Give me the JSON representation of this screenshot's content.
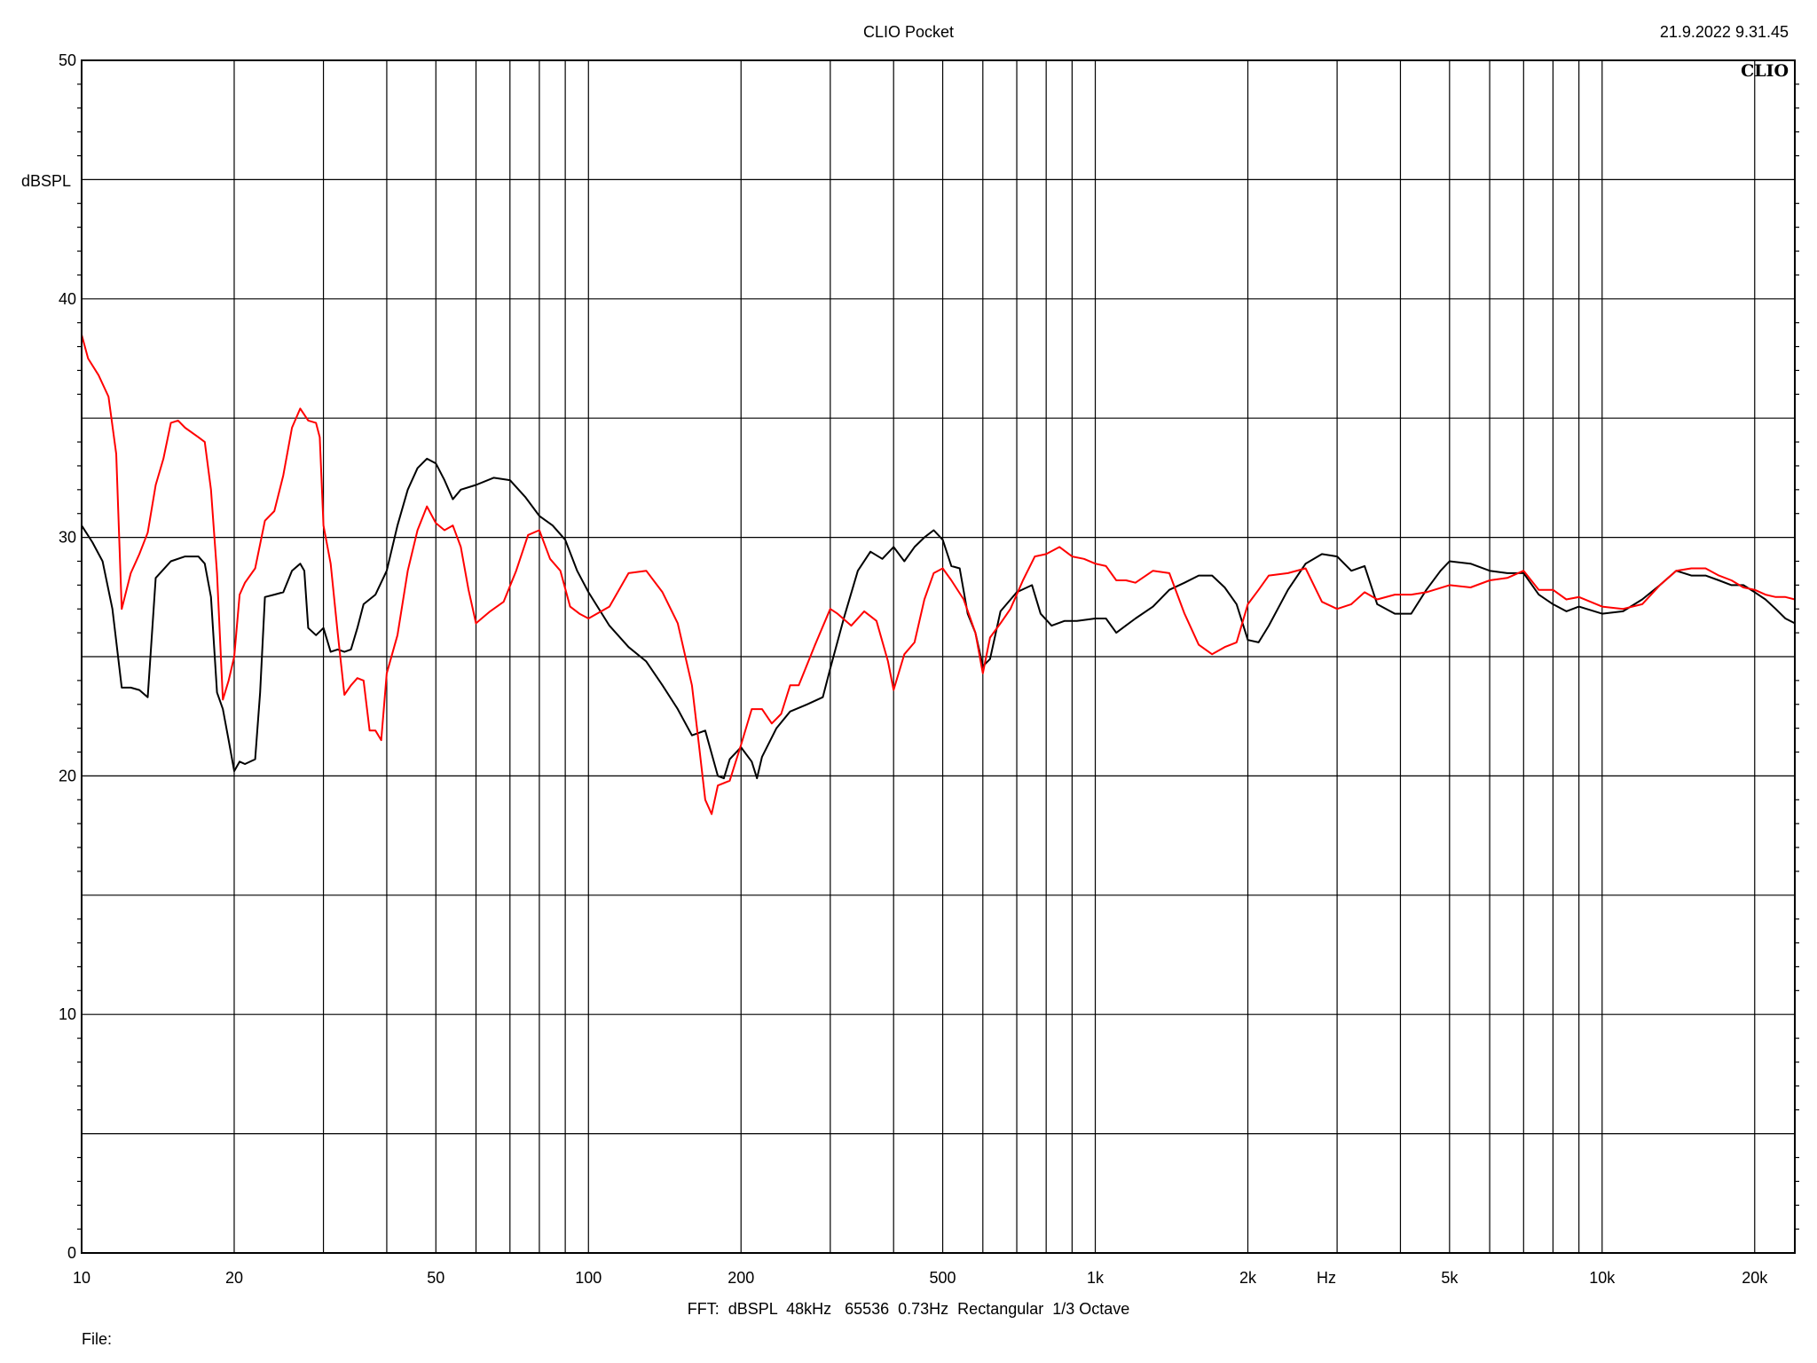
{
  "header": {
    "app_title": "CLIO Pocket",
    "timestamp": "21.9.2022 9.31.45",
    "brand_logo": "CLIO"
  },
  "footer": {
    "settings_line": "FFT:  dBSPL  48kHz   65536  0.73Hz  Rectangular  1/3 Octave",
    "file_label": "File:"
  },
  "chart_data": {
    "type": "line",
    "ylabel": "dBSPL",
    "xlabel_unit": "Hz",
    "x_scale": "log",
    "xlim": [
      10,
      24000
    ],
    "ylim": [
      0,
      50
    ],
    "grid": true,
    "x_tick_labels": [
      {
        "value": 10,
        "label": "10"
      },
      {
        "value": 20,
        "label": "20"
      },
      {
        "value": 50,
        "label": "50"
      },
      {
        "value": 100,
        "label": "100"
      },
      {
        "value": 200,
        "label": "200"
      },
      {
        "value": 500,
        "label": "500"
      },
      {
        "value": 1000,
        "label": "1k"
      },
      {
        "value": 2000,
        "label": "2k"
      },
      {
        "value": 5000,
        "label": "5k"
      },
      {
        "value": 10000,
        "label": "10k"
      },
      {
        "value": 20000,
        "label": "20k"
      }
    ],
    "y_tick_labels": [
      {
        "value": 0,
        "label": "0"
      },
      {
        "value": 10,
        "label": "10"
      },
      {
        "value": 20,
        "label": "20"
      },
      {
        "value": 30,
        "label": "30"
      },
      {
        "value": 40,
        "label": "40"
      },
      {
        "value": 50,
        "label": "50"
      }
    ],
    "series": [
      {
        "color": "#000000",
        "points": [
          [
            10,
            30.5
          ],
          [
            10.5,
            29.8
          ],
          [
            11,
            29.0
          ],
          [
            11.5,
            27.0
          ],
          [
            12,
            23.7
          ],
          [
            12.5,
            23.7
          ],
          [
            13,
            23.6
          ],
          [
            13.5,
            23.3
          ],
          [
            14,
            28.3
          ],
          [
            15,
            29.0
          ],
          [
            16,
            29.2
          ],
          [
            17,
            29.2
          ],
          [
            17.5,
            28.9
          ],
          [
            18,
            27.5
          ],
          [
            18.5,
            23.5
          ],
          [
            19,
            22.8
          ],
          [
            19.5,
            21.5
          ],
          [
            20,
            20.2
          ],
          [
            20.5,
            20.6
          ],
          [
            21,
            20.5
          ],
          [
            22,
            20.7
          ],
          [
            22.5,
            23.5
          ],
          [
            23,
            27.5
          ],
          [
            24,
            27.6
          ],
          [
            25,
            27.7
          ],
          [
            26,
            28.6
          ],
          [
            27,
            28.9
          ],
          [
            27.5,
            28.6
          ],
          [
            28,
            26.2
          ],
          [
            29,
            25.9
          ],
          [
            30,
            26.2
          ],
          [
            31,
            25.2
          ],
          [
            32,
            25.3
          ],
          [
            33,
            25.2
          ],
          [
            34,
            25.3
          ],
          [
            35,
            26.2
          ],
          [
            36,
            27.2
          ],
          [
            38,
            27.6
          ],
          [
            40,
            28.6
          ],
          [
            42,
            30.5
          ],
          [
            44,
            32.0
          ],
          [
            46,
            32.9
          ],
          [
            48,
            33.3
          ],
          [
            50,
            33.1
          ],
          [
            52,
            32.4
          ],
          [
            54,
            31.6
          ],
          [
            56,
            32.0
          ],
          [
            60,
            32.2
          ],
          [
            65,
            32.5
          ],
          [
            70,
            32.4
          ],
          [
            75,
            31.7
          ],
          [
            80,
            30.9
          ],
          [
            85,
            30.5
          ],
          [
            90,
            29.9
          ],
          [
            95,
            28.6
          ],
          [
            100,
            27.7
          ],
          [
            110,
            26.3
          ],
          [
            120,
            25.4
          ],
          [
            130,
            24.8
          ],
          [
            140,
            23.8
          ],
          [
            150,
            22.8
          ],
          [
            160,
            21.7
          ],
          [
            170,
            21.9
          ],
          [
            180,
            20.0
          ],
          [
            185,
            19.9
          ],
          [
            190,
            20.7
          ],
          [
            200,
            21.2
          ],
          [
            210,
            20.6
          ],
          [
            215,
            19.9
          ],
          [
            220,
            20.8
          ],
          [
            235,
            22.0
          ],
          [
            250,
            22.7
          ],
          [
            270,
            23.0
          ],
          [
            290,
            23.3
          ],
          [
            300,
            24.5
          ],
          [
            320,
            26.7
          ],
          [
            340,
            28.6
          ],
          [
            360,
            29.4
          ],
          [
            380,
            29.1
          ],
          [
            400,
            29.6
          ],
          [
            420,
            29.0
          ],
          [
            440,
            29.6
          ],
          [
            460,
            30.0
          ],
          [
            480,
            30.3
          ],
          [
            500,
            29.9
          ],
          [
            520,
            28.8
          ],
          [
            540,
            28.7
          ],
          [
            560,
            26.8
          ],
          [
            580,
            26.0
          ],
          [
            600,
            24.6
          ],
          [
            620,
            24.9
          ],
          [
            650,
            26.9
          ],
          [
            700,
            27.7
          ],
          [
            750,
            28.0
          ],
          [
            780,
            26.8
          ],
          [
            820,
            26.3
          ],
          [
            870,
            26.5
          ],
          [
            920,
            26.5
          ],
          [
            1000,
            26.6
          ],
          [
            1050,
            26.6
          ],
          [
            1100,
            26.0
          ],
          [
            1200,
            26.6
          ],
          [
            1300,
            27.1
          ],
          [
            1400,
            27.8
          ],
          [
            1500,
            28.1
          ],
          [
            1600,
            28.4
          ],
          [
            1700,
            28.4
          ],
          [
            1800,
            27.9
          ],
          [
            1900,
            27.2
          ],
          [
            2000,
            25.7
          ],
          [
            2100,
            25.6
          ],
          [
            2200,
            26.3
          ],
          [
            2400,
            27.8
          ],
          [
            2600,
            28.9
          ],
          [
            2800,
            29.3
          ],
          [
            3000,
            29.2
          ],
          [
            3200,
            28.6
          ],
          [
            3400,
            28.8
          ],
          [
            3600,
            27.2
          ],
          [
            3900,
            26.8
          ],
          [
            4200,
            26.8
          ],
          [
            4500,
            27.8
          ],
          [
            4800,
            28.6
          ],
          [
            5000,
            29.0
          ],
          [
            5500,
            28.9
          ],
          [
            6000,
            28.6
          ],
          [
            6500,
            28.5
          ],
          [
            7000,
            28.5
          ],
          [
            7500,
            27.6
          ],
          [
            8000,
            27.2
          ],
          [
            8500,
            26.9
          ],
          [
            9000,
            27.1
          ],
          [
            10000,
            26.8
          ],
          [
            11000,
            26.9
          ],
          [
            12000,
            27.4
          ],
          [
            13000,
            28.0
          ],
          [
            14000,
            28.6
          ],
          [
            15000,
            28.4
          ],
          [
            16000,
            28.4
          ],
          [
            17000,
            28.2
          ],
          [
            18000,
            28.0
          ],
          [
            19000,
            28.0
          ],
          [
            20000,
            27.7
          ],
          [
            21000,
            27.4
          ],
          [
            22000,
            27.0
          ],
          [
            23000,
            26.6
          ],
          [
            24000,
            26.4
          ]
        ]
      },
      {
        "color": "#ff0000",
        "points": [
          [
            10,
            38.5
          ],
          [
            10.3,
            37.5
          ],
          [
            10.8,
            36.8
          ],
          [
            11.3,
            35.9
          ],
          [
            11.7,
            33.5
          ],
          [
            12,
            27.0
          ],
          [
            12.5,
            28.5
          ],
          [
            13,
            29.3
          ],
          [
            13.5,
            30.2
          ],
          [
            14,
            32.2
          ],
          [
            14.5,
            33.3
          ],
          [
            15,
            34.8
          ],
          [
            15.5,
            34.9
          ],
          [
            16,
            34.6
          ],
          [
            17,
            34.2
          ],
          [
            17.5,
            34.0
          ],
          [
            18,
            32.0
          ],
          [
            18.5,
            28.5
          ],
          [
            19,
            23.2
          ],
          [
            19.5,
            24.0
          ],
          [
            20,
            25.0
          ],
          [
            20.5,
            27.6
          ],
          [
            21,
            28.1
          ],
          [
            22,
            28.7
          ],
          [
            23,
            30.7
          ],
          [
            24,
            31.1
          ],
          [
            25,
            32.6
          ],
          [
            26,
            34.6
          ],
          [
            27,
            35.4
          ],
          [
            28,
            34.9
          ],
          [
            29,
            34.8
          ],
          [
            29.5,
            34.2
          ],
          [
            30,
            30.5
          ],
          [
            31,
            28.9
          ],
          [
            32,
            26.0
          ],
          [
            33,
            23.4
          ],
          [
            34,
            23.8
          ],
          [
            35,
            24.1
          ],
          [
            36,
            24.0
          ],
          [
            37,
            21.9
          ],
          [
            38,
            21.9
          ],
          [
            39,
            21.5
          ],
          [
            40,
            24.3
          ],
          [
            42,
            25.9
          ],
          [
            44,
            28.6
          ],
          [
            46,
            30.3
          ],
          [
            48,
            31.3
          ],
          [
            50,
            30.6
          ],
          [
            52,
            30.3
          ],
          [
            54,
            30.5
          ],
          [
            56,
            29.6
          ],
          [
            58,
            27.8
          ],
          [
            60,
            26.4
          ],
          [
            64,
            26.9
          ],
          [
            68,
            27.3
          ],
          [
            72,
            28.6
          ],
          [
            76,
            30.1
          ],
          [
            80,
            30.3
          ],
          [
            84,
            29.1
          ],
          [
            88,
            28.6
          ],
          [
            92,
            27.1
          ],
          [
            96,
            26.8
          ],
          [
            100,
            26.6
          ],
          [
            110,
            27.1
          ],
          [
            120,
            28.5
          ],
          [
            130,
            28.6
          ],
          [
            140,
            27.7
          ],
          [
            150,
            26.4
          ],
          [
            160,
            23.8
          ],
          [
            165,
            21.4
          ],
          [
            170,
            19.0
          ],
          [
            175,
            18.4
          ],
          [
            180,
            19.6
          ],
          [
            190,
            19.8
          ],
          [
            200,
            21.3
          ],
          [
            210,
            22.8
          ],
          [
            220,
            22.8
          ],
          [
            230,
            22.2
          ],
          [
            240,
            22.6
          ],
          [
            250,
            23.8
          ],
          [
            260,
            23.8
          ],
          [
            280,
            25.5
          ],
          [
            300,
            27.0
          ],
          [
            310,
            26.8
          ],
          [
            330,
            26.3
          ],
          [
            350,
            26.9
          ],
          [
            370,
            26.5
          ],
          [
            390,
            24.8
          ],
          [
            400,
            23.6
          ],
          [
            420,
            25.1
          ],
          [
            440,
            25.6
          ],
          [
            460,
            27.4
          ],
          [
            480,
            28.5
          ],
          [
            500,
            28.7
          ],
          [
            520,
            28.2
          ],
          [
            550,
            27.4
          ],
          [
            580,
            26.0
          ],
          [
            600,
            24.3
          ],
          [
            620,
            25.8
          ],
          [
            650,
            26.4
          ],
          [
            680,
            27.0
          ],
          [
            720,
            28.2
          ],
          [
            760,
            29.2
          ],
          [
            800,
            29.3
          ],
          [
            850,
            29.6
          ],
          [
            900,
            29.2
          ],
          [
            950,
            29.1
          ],
          [
            1000,
            28.9
          ],
          [
            1050,
            28.8
          ],
          [
            1100,
            28.2
          ],
          [
            1150,
            28.2
          ],
          [
            1200,
            28.1
          ],
          [
            1300,
            28.6
          ],
          [
            1400,
            28.5
          ],
          [
            1500,
            26.8
          ],
          [
            1600,
            25.5
          ],
          [
            1700,
            25.1
          ],
          [
            1800,
            25.4
          ],
          [
            1900,
            25.6
          ],
          [
            2000,
            27.2
          ],
          [
            2100,
            27.8
          ],
          [
            2200,
            28.4
          ],
          [
            2400,
            28.5
          ],
          [
            2600,
            28.7
          ],
          [
            2800,
            27.3
          ],
          [
            3000,
            27.0
          ],
          [
            3200,
            27.2
          ],
          [
            3400,
            27.7
          ],
          [
            3600,
            27.4
          ],
          [
            3900,
            27.6
          ],
          [
            4200,
            27.6
          ],
          [
            4500,
            27.7
          ],
          [
            5000,
            28.0
          ],
          [
            5500,
            27.9
          ],
          [
            6000,
            28.2
          ],
          [
            6500,
            28.3
          ],
          [
            7000,
            28.6
          ],
          [
            7500,
            27.8
          ],
          [
            8000,
            27.8
          ],
          [
            8500,
            27.4
          ],
          [
            9000,
            27.5
          ],
          [
            10000,
            27.1
          ],
          [
            11000,
            27.0
          ],
          [
            12000,
            27.2
          ],
          [
            13000,
            28.0
          ],
          [
            14000,
            28.6
          ],
          [
            15000,
            28.7
          ],
          [
            16000,
            28.7
          ],
          [
            17000,
            28.4
          ],
          [
            18000,
            28.2
          ],
          [
            19000,
            27.9
          ],
          [
            20000,
            27.8
          ],
          [
            21000,
            27.6
          ],
          [
            22000,
            27.5
          ],
          [
            23000,
            27.5
          ],
          [
            24000,
            27.4
          ]
        ]
      }
    ]
  }
}
